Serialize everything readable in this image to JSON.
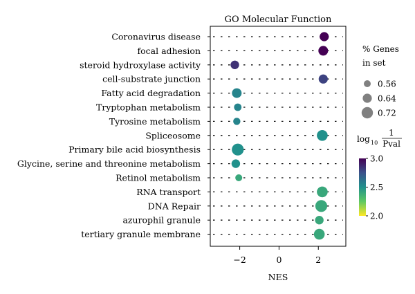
{
  "chart_data": {
    "type": "scatter",
    "title": "GO Molecular Function",
    "xlabel": "NES",
    "ylabel": "",
    "xlim": [
      -3.5,
      3.4
    ],
    "xticks": [
      -2,
      0,
      2
    ],
    "xtick_labels": [
      "−2",
      "0",
      "2"
    ],
    "categories": [
      "Coronavirus disease",
      "focal adhesion",
      "steroid hydroxylase activity",
      "cell-substrate junction",
      "Fatty acid degradation",
      "Tryptophan metabolism",
      "Tyrosine metabolism",
      "Spliceosome",
      "Primary bile acid biosynthesis",
      "Glycine, serine and threonine metabolism",
      "Retinol metabolism",
      "RNA transport",
      "DNA Repair",
      "azurophil granule",
      "tertiary granule membrane"
    ],
    "points": [
      {
        "category": "Coronavirus disease",
        "nes": 2.3,
        "pct_genes": 0.64,
        "log10_inv_pval": 3.0
      },
      {
        "category": "focal adhesion",
        "nes": 2.25,
        "pct_genes": 0.66,
        "log10_inv_pval": 3.0
      },
      {
        "category": "steroid hydroxylase activity",
        "nes": -2.25,
        "pct_genes": 0.62,
        "log10_inv_pval": 2.85
      },
      {
        "category": "cell-substrate junction",
        "nes": 2.25,
        "pct_genes": 0.64,
        "log10_inv_pval": 2.8
      },
      {
        "category": "Fatty acid degradation",
        "nes": -2.15,
        "pct_genes": 0.66,
        "log10_inv_pval": 2.55
      },
      {
        "category": "Tryptophan metabolism",
        "nes": -2.1,
        "pct_genes": 0.58,
        "log10_inv_pval": 2.55
      },
      {
        "category": "Tyrosine metabolism",
        "nes": -2.15,
        "pct_genes": 0.57,
        "log10_inv_pval": 2.55
      },
      {
        "category": "Spliceosome",
        "nes": 2.2,
        "pct_genes": 0.7,
        "log10_inv_pval": 2.5
      },
      {
        "category": "Primary bile acid biosynthesis",
        "nes": -2.1,
        "pct_genes": 0.74,
        "log10_inv_pval": 2.5
      },
      {
        "category": "Glycine, serine and threonine metabolism",
        "nes": -2.2,
        "pct_genes": 0.62,
        "log10_inv_pval": 2.5
      },
      {
        "category": "Retinol metabolism",
        "nes": -2.05,
        "pct_genes": 0.56,
        "log10_inv_pval": 2.4
      },
      {
        "category": "RNA transport",
        "nes": 2.2,
        "pct_genes": 0.7,
        "log10_inv_pval": 2.4
      },
      {
        "category": "DNA Repair",
        "nes": 2.15,
        "pct_genes": 0.74,
        "log10_inv_pval": 2.4
      },
      {
        "category": "azurophil granule",
        "nes": 2.05,
        "pct_genes": 0.62,
        "log10_inv_pval": 2.4
      },
      {
        "category": "tertiary granule membrane",
        "nes": 2.05,
        "pct_genes": 0.7,
        "log10_inv_pval": 2.4
      }
    ],
    "size_legend": {
      "title_line1": "% Genes",
      "title_line2": "in set",
      "values": [
        0.56,
        0.64,
        0.72
      ],
      "labels": [
        "0.56",
        "0.64",
        "0.72"
      ],
      "color": "#808080"
    },
    "color_legend": {
      "title_log": "log",
      "title_sub": "10",
      "title_num": "1",
      "title_den": "Pval",
      "range": [
        2.0,
        3.0
      ],
      "ticks": [
        3.0,
        2.5,
        2.0
      ],
      "tick_labels": [
        "3.0",
        "2.5",
        "2.0"
      ],
      "colormap": "viridis"
    },
    "grid": "dotted-horizontal",
    "legend_placement": "right"
  }
}
